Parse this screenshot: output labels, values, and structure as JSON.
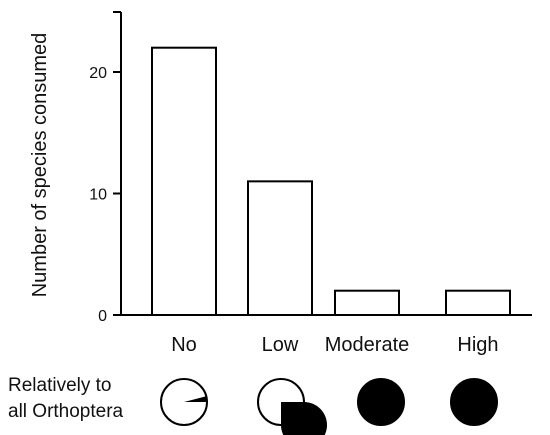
{
  "chart_data": {
    "type": "bar",
    "title": "",
    "xlabel": "",
    "ylabel": "Number of species consumed",
    "categories": [
      "No",
      "Low",
      "Moderate",
      "High"
    ],
    "values": [
      22,
      11,
      2,
      2
    ],
    "ylim": [
      0,
      25
    ],
    "yticks": [
      0,
      10,
      20
    ],
    "bar_fill": "#ffffff",
    "bar_stroke": "#000000",
    "grid": false,
    "legend": "none"
  },
  "relative_note": {
    "label_line1": "Relatively to",
    "label_line2": "all Orthoptera",
    "pie_fractions": [
      0.04,
      0.75,
      1.0,
      1.0
    ],
    "pie_fill": "#000000"
  }
}
